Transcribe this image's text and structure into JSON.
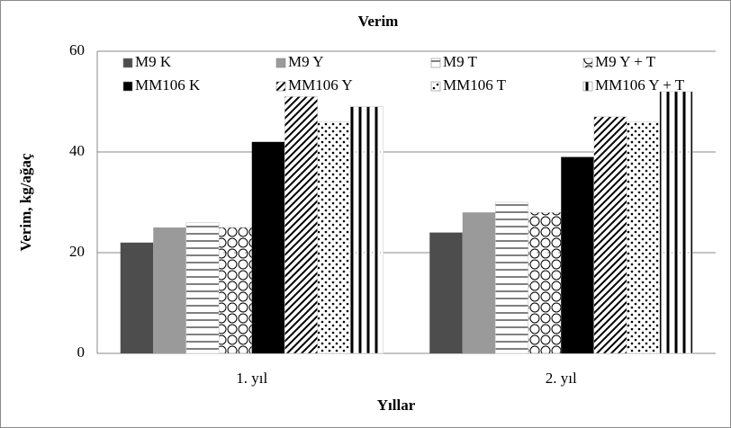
{
  "chart_data": {
    "type": "bar",
    "title": "Verim",
    "y_label": "Verim, kg/ağaç",
    "x_label": "Yıllar",
    "categories": [
      "1. yıl",
      "2. yıl"
    ],
    "series": [
      {
        "name": "M9 K",
        "color": "#4d4d4d",
        "pattern": "solid",
        "values": [
          22,
          24
        ]
      },
      {
        "name": "M9 Y",
        "color": "#9a9a9a",
        "pattern": "solid",
        "values": [
          25,
          28
        ]
      },
      {
        "name": "M9 T",
        "color": "#ffffff",
        "pattern": "hlines",
        "values": [
          26,
          30
        ]
      },
      {
        "name": "M9 Y + T",
        "color": "#ffffff",
        "pattern": "circles",
        "values": [
          25,
          28
        ]
      },
      {
        "name": "MM106 K",
        "color": "#000000",
        "pattern": "solid",
        "values": [
          42,
          39
        ]
      },
      {
        "name": "MM106 Y",
        "color": "#ffffff",
        "pattern": "diagonal",
        "values": [
          51,
          47
        ]
      },
      {
        "name": "MM106 T",
        "color": "#ffffff",
        "pattern": "dots",
        "values": [
          46,
          46
        ]
      },
      {
        "name": "MM106 Y + T",
        "color": "#ffffff",
        "pattern": "vlines",
        "values": [
          49,
          52
        ]
      }
    ],
    "ylim": [
      0,
      60
    ],
    "yticks": [
      0,
      20,
      40,
      60
    ],
    "grid": true,
    "legend": "top"
  }
}
